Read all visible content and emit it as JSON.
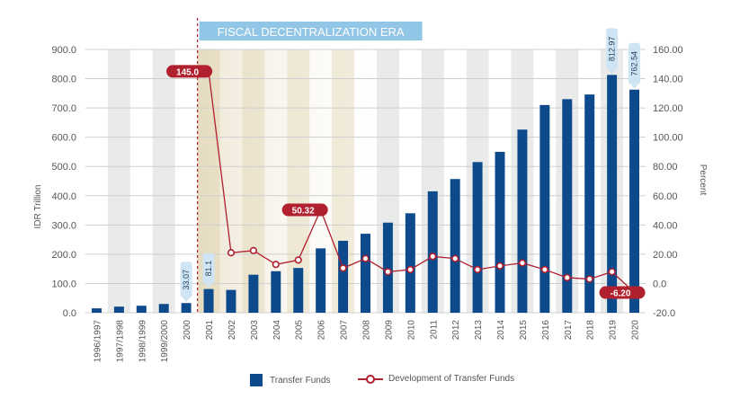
{
  "colors": {
    "bar": "#0c4a8c",
    "line": "#b0202e",
    "era_banner": "#92c6e6",
    "band_gray": "#e4e7e6",
    "band_tan": "#ede7d4",
    "callout_red": "#b0202e",
    "callout_blue": "#cfe5f4"
  },
  "era_label": "FISCAL DECENTRALIZATION ERA",
  "legend": {
    "bar_label": "Transfer Funds",
    "line_label": "Development of Transfer Funds"
  },
  "chart_data": {
    "type": "bar",
    "categories": [
      "1996/1997",
      "1997/1998",
      "1998/1999",
      "1999/2000",
      "2000",
      "2001",
      "2002",
      "2003",
      "2004",
      "2005",
      "2006",
      "2007",
      "2008",
      "2009",
      "2010",
      "2011",
      "2012",
      "2013",
      "2014",
      "2015",
      "2016",
      "2017",
      "2018",
      "2019",
      "2020"
    ],
    "series": [
      {
        "name": "Transfer Funds",
        "type": "bar",
        "axis": "left",
        "values": [
          15,
          21,
          24,
          30,
          33.07,
          81.1,
          78,
          130,
          142,
          153,
          220,
          246,
          270,
          308,
          340,
          415,
          457,
          515,
          550,
          626,
          710,
          730,
          746,
          812.97,
          762.54
        ]
      },
      {
        "name": "Development of Transfer Funds",
        "type": "line",
        "axis": "right",
        "values": [
          null,
          null,
          null,
          null,
          null,
          145.0,
          21,
          22.5,
          13,
          16,
          50.32,
          10.5,
          17,
          8,
          9.5,
          18.5,
          17,
          9.5,
          12,
          14,
          9.5,
          4,
          3,
          8,
          -6.2
        ]
      }
    ],
    "bar_labels": [
      {
        "index": 4,
        "text": "33.07"
      },
      {
        "index": 5,
        "text": "81.1"
      },
      {
        "index": 23,
        "text": "812.97"
      },
      {
        "index": 24,
        "text": "762.54"
      }
    ],
    "line_labels": [
      {
        "index": 5,
        "text": "145.0"
      },
      {
        "index": 10,
        "text": "50.32"
      },
      {
        "index": 24,
        "text": "-6.20"
      }
    ],
    "ylabel": "IDR Trillion",
    "ylabel_right": "Percent",
    "ylim": [
      0,
      900
    ],
    "yticks": [
      "0.0",
      "100.0",
      "200.0",
      "300.0",
      "400.0",
      "500.0",
      "600.0",
      "700.0",
      "800.0",
      "900.0"
    ],
    "ylim_right": [
      -20,
      160
    ],
    "yticks_right": [
      "-20.0",
      "0.0",
      "20.00",
      "40.00",
      "60.00",
      "80.00",
      "100.00",
      "120.00",
      "140.00",
      "160.00"
    ],
    "era_start_category": "2001",
    "grid": true,
    "legend_position": "bottom"
  }
}
